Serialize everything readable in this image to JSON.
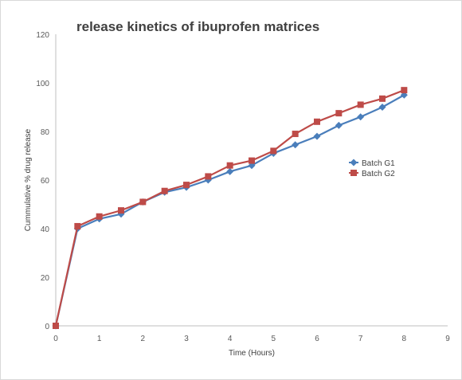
{
  "chart_data": {
    "type": "line",
    "title": "release kinetics of ibuprofen matrices",
    "xlabel": "Time (Hours)",
    "ylabel": "Cummulative  %  drug release",
    "xlim": [
      0,
      9
    ],
    "ylim": [
      0,
      120
    ],
    "x_ticks": [
      "0",
      "1",
      "2",
      "3",
      "4",
      "5",
      "6",
      "7",
      "8",
      "9"
    ],
    "y_ticks": [
      "0",
      "20",
      "40",
      "60",
      "80",
      "100",
      "120"
    ],
    "grid": false,
    "legend_position": "right",
    "x": [
      0,
      0.5,
      1,
      1.5,
      2,
      2.5,
      3,
      3.5,
      4,
      4.5,
      5,
      5.5,
      6,
      6.5,
      7,
      7.5,
      8
    ],
    "series": [
      {
        "name": "Batch G1",
        "color": "#4a7ebb",
        "marker": "diamond",
        "values": [
          0,
          40,
          44,
          46,
          51,
          55,
          57,
          60,
          63.5,
          66,
          71,
          74.5,
          78,
          82.5,
          86,
          90,
          95
        ]
      },
      {
        "name": "Batch G2",
        "color": "#be4b48",
        "marker": "square",
        "values": [
          0,
          41,
          45,
          47.5,
          51,
          55.5,
          58,
          61.5,
          66,
          68,
          72,
          79,
          84,
          87.5,
          91,
          93.5,
          97
        ]
      }
    ]
  }
}
